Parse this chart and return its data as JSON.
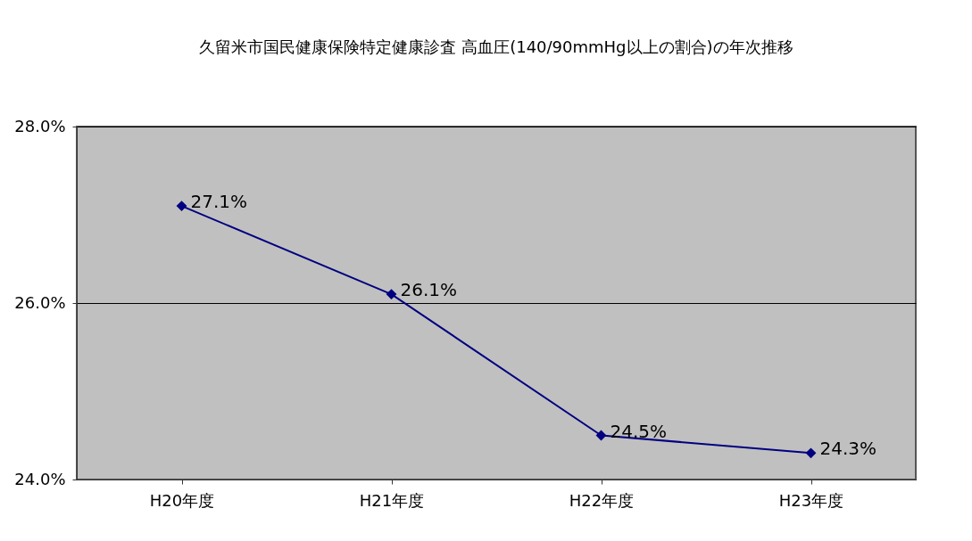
{
  "chart_data": {
    "type": "line",
    "title": "久留米市国民健康保険特定健康診査  高血圧(140/90mmHg以上の割合)の年次推移",
    "categories": [
      "H20年度",
      "H21年度",
      "H22年度",
      "H23年度"
    ],
    "series": [
      {
        "color": "#000080",
        "values": [
          27.1,
          26.1,
          24.5,
          24.3
        ],
        "value_labels": [
          "27.1%",
          "26.1%",
          "24.5%",
          "24.3%"
        ]
      }
    ],
    "ylim": [
      24,
      28
    ],
    "yticks": [
      {
        "value": 24,
        "label": "24.0%"
      },
      {
        "value": 26,
        "label": "26.0%"
      },
      {
        "value": 28,
        "label": "28.0%"
      }
    ],
    "grid": "y",
    "marker": "diamond",
    "line_style": "solid",
    "legend": false
  }
}
